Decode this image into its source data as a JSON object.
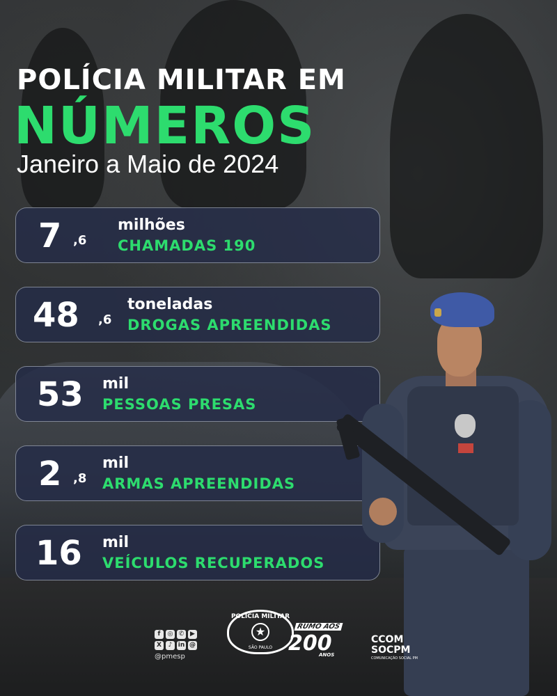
{
  "header": {
    "title_line1": "POLÍCIA MILITAR EM",
    "title_line2": "NÚMEROS",
    "subtitle": "Janeiro a Maio de 2024"
  },
  "stats": [
    {
      "number": "7",
      "decimal": ",6",
      "unit": "milhões",
      "label": "CHAMADAS 190"
    },
    {
      "number": "48",
      "decimal": ",6",
      "unit": "toneladas",
      "label": "DROGAS APREENDIDAS"
    },
    {
      "number": "53",
      "decimal": "",
      "unit": "mil",
      "label": "PESSOAS PRESAS"
    },
    {
      "number": "2",
      "decimal": ",8",
      "unit": "mil",
      "label": "ARMAS APREENDIDAS"
    },
    {
      "number": "16",
      "decimal": "",
      "unit": "mil",
      "label": "VEÍCULOS RECUPERADOS"
    }
  ],
  "footer": {
    "social_handle": "@pmesp",
    "social_icons": [
      "facebook-icon",
      "instagram-icon",
      "whatsapp-icon",
      "youtube-icon",
      "x-icon",
      "tiktok-icon",
      "linkedin-icon",
      "email-icon"
    ],
    "logo_pm_text": "POLÍCIA MILITAR",
    "logo_pm_sub": "SÃO PAULO",
    "logo_200_top": "RUMO AOS",
    "logo_200_number": "200",
    "logo_200_sub": "ANOS",
    "ccom_line1": "CCOM",
    "ccom_line2": "SOCPM",
    "ccom_line3": "COMUNICAÇÃO SOCIAL PM"
  },
  "colors": {
    "accent_green": "#2ddc6e",
    "card_bg": "#242c48",
    "text": "#ffffff"
  }
}
